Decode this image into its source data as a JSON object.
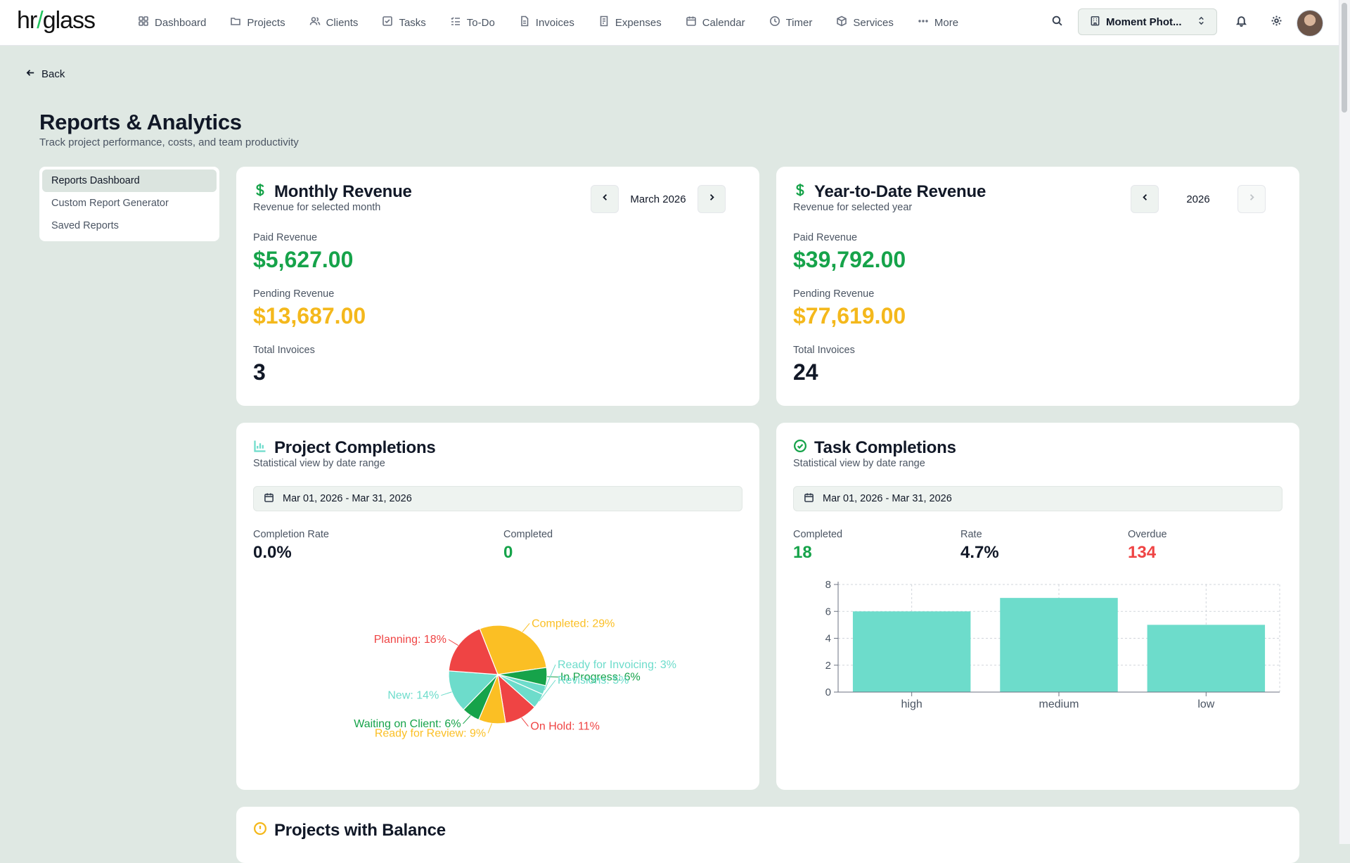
{
  "app": {
    "logo_left": "hr",
    "logo_slash": "/",
    "logo_right": "glass"
  },
  "nav": [
    {
      "label": "Dashboard",
      "icon": "dashboard-icon"
    },
    {
      "label": "Projects",
      "icon": "folder-icon"
    },
    {
      "label": "Clients",
      "icon": "users-icon"
    },
    {
      "label": "Tasks",
      "icon": "checkbox-icon"
    },
    {
      "label": "To-Do",
      "icon": "list-icon"
    },
    {
      "label": "Invoices",
      "icon": "file-icon"
    },
    {
      "label": "Expenses",
      "icon": "receipt-icon"
    },
    {
      "label": "Calendar",
      "icon": "calendar-icon"
    },
    {
      "label": "Timer",
      "icon": "clock-icon"
    },
    {
      "label": "Services",
      "icon": "box-icon"
    },
    {
      "label": "More",
      "icon": "ellipsis-icon"
    }
  ],
  "company_selector": {
    "value": "Moment Phot..."
  },
  "back_label": "Back",
  "page": {
    "title": "Reports & Analytics",
    "subtitle": "Track project performance, costs, and team productivity"
  },
  "side_menu": {
    "items": [
      "Reports Dashboard",
      "Custom Report Generator",
      "Saved Reports"
    ],
    "active": "Reports Dashboard"
  },
  "monthly_revenue": {
    "title": "Monthly Revenue",
    "subtitle": "Revenue for selected month",
    "period": "March 2026",
    "paid_label": "Paid Revenue",
    "paid_value": "$5,627.00",
    "pending_label": "Pending Revenue",
    "pending_value": "$13,687.00",
    "invoices_label": "Total Invoices",
    "invoices_value": "3"
  },
  "ytd_revenue": {
    "title": "Year-to-Date Revenue",
    "subtitle": "Revenue for selected year",
    "period": "2026",
    "paid_label": "Paid Revenue",
    "paid_value": "$39,792.00",
    "pending_label": "Pending Revenue",
    "pending_value": "$77,619.00",
    "invoices_label": "Total Invoices",
    "invoices_value": "24"
  },
  "project_completions": {
    "title": "Project Completions",
    "subtitle": "Statistical view by date range",
    "date_range": "Mar 01, 2026 - Mar 31, 2026",
    "rate_label": "Completion Rate",
    "rate_value": "0.0%",
    "completed_label": "Completed",
    "completed_value": "0"
  },
  "task_completions": {
    "title": "Task Completions",
    "subtitle": "Statistical view by date range",
    "date_range": "Mar 01, 2026 - Mar 31, 2026",
    "completed_label": "Completed",
    "completed_value": "18",
    "rate_label": "Rate",
    "rate_value": "4.7%",
    "overdue_label": "Overdue",
    "overdue_value": "134"
  },
  "balance_card": {
    "title": "Projects with Balance"
  },
  "colors": {
    "green": "#16a34a",
    "yellow": "#fbbf24",
    "red": "#ef4444",
    "teal": "#6ddccb",
    "background": "#dfe8e3"
  },
  "chart_data": [
    {
      "type": "pie",
      "slices": [
        {
          "label": "Completed: 29%",
          "value": 29,
          "color": "#fbbf24"
        },
        {
          "label": "In Progress: 6%",
          "value": 6,
          "color": "#16a34a"
        },
        {
          "label": "Ready for Invoicing: 3%",
          "value": 3,
          "color": "#6ddccb"
        },
        {
          "label": "Revisions: 5%",
          "value": 5,
          "color": "#6ddccb"
        },
        {
          "label": "On Hold: 11%",
          "value": 11,
          "color": "#ef4444"
        },
        {
          "label": "Ready for Review: 9%",
          "value": 9,
          "color": "#fbbf24"
        },
        {
          "label": "Waiting on Client: 6%",
          "value": 6,
          "color": "#16a34a"
        },
        {
          "label": "New: 14%",
          "value": 14,
          "color": "#6ddccb"
        },
        {
          "label": "Planning: 18%",
          "value": 18,
          "color": "#ef4444"
        }
      ]
    },
    {
      "type": "bar",
      "categories": [
        "high",
        "medium",
        "low"
      ],
      "values": [
        6,
        7,
        5
      ],
      "y_ticks": [
        0,
        2,
        4,
        6,
        8
      ],
      "ylim": [
        0,
        8
      ],
      "grid": true,
      "color": "#6ddccb"
    }
  ]
}
